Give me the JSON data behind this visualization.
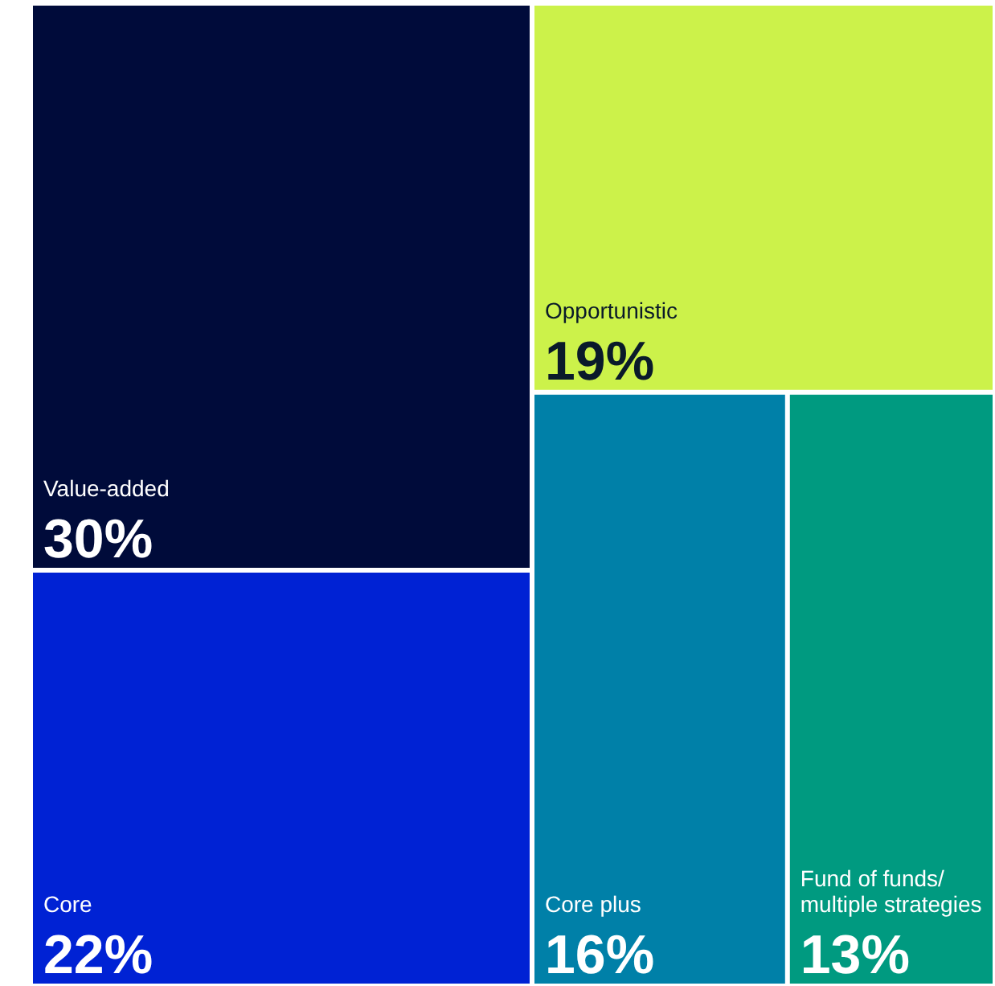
{
  "chart_data": {
    "type": "other",
    "categories": [
      "Value-added",
      "Core",
      "Opportunistic",
      "Core plus",
      "Fund of funds/ multiple strategies"
    ],
    "values": [
      30,
      22,
      19,
      16,
      13
    ],
    "value_labels": [
      "30%",
      "22%",
      "19%",
      "16%",
      "13%"
    ],
    "colors": [
      "#000b3a",
      "#0022d4",
      "#ccf24a",
      "#0080a8",
      "#009a80"
    ]
  }
}
